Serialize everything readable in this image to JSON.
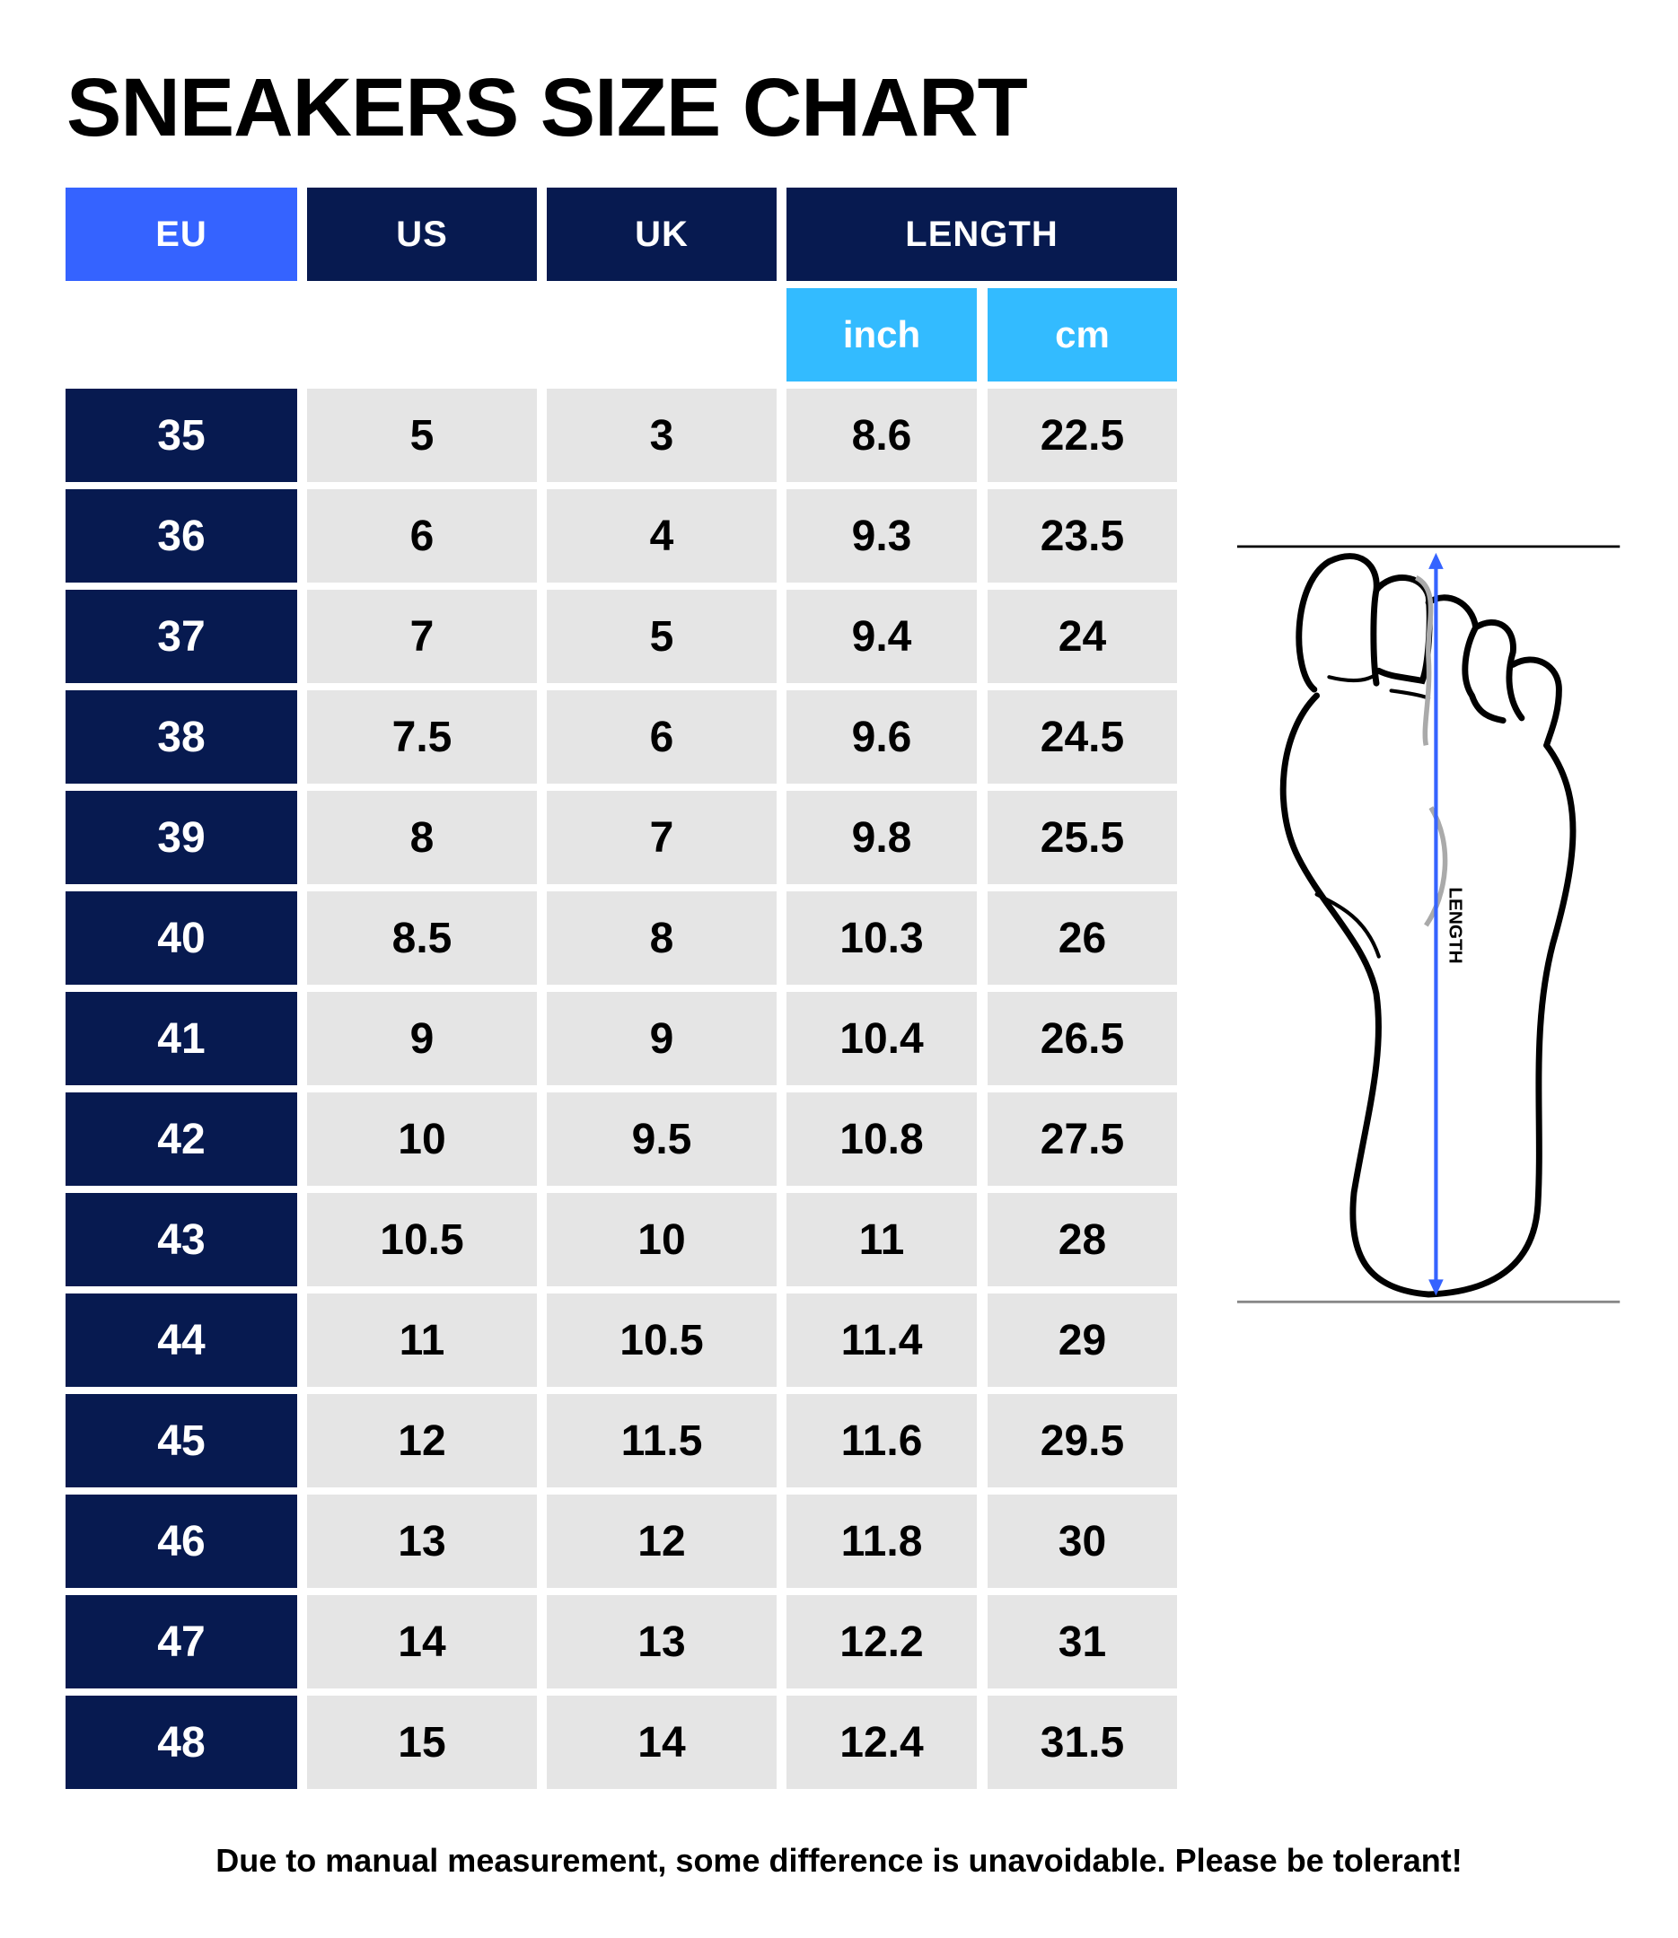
{
  "title": "SNEAKERS SIZE CHART",
  "headers": {
    "eu": "EU",
    "us": "US",
    "uk": "UK",
    "length": "LENGTH",
    "inch": "inch",
    "cm": "cm"
  },
  "rows": [
    {
      "eu": "35",
      "us": "5",
      "uk": "3",
      "inch": "8.6",
      "cm": "22.5"
    },
    {
      "eu": "36",
      "us": "6",
      "uk": "4",
      "inch": "9.3",
      "cm": "23.5"
    },
    {
      "eu": "37",
      "us": "7",
      "uk": "5",
      "inch": "9.4",
      "cm": "24"
    },
    {
      "eu": "38",
      "us": "7.5",
      "uk": "6",
      "inch": "9.6",
      "cm": "24.5"
    },
    {
      "eu": "39",
      "us": "8",
      "uk": "7",
      "inch": "9.8",
      "cm": "25.5"
    },
    {
      "eu": "40",
      "us": "8.5",
      "uk": "8",
      "inch": "10.3",
      "cm": "26"
    },
    {
      "eu": "41",
      "us": "9",
      "uk": "9",
      "inch": "10.4",
      "cm": "26.5"
    },
    {
      "eu": "42",
      "us": "10",
      "uk": "9.5",
      "inch": "10.8",
      "cm": "27.5"
    },
    {
      "eu": "43",
      "us": "10.5",
      "uk": "10",
      "inch": "11",
      "cm": "28"
    },
    {
      "eu": "44",
      "us": "11",
      "uk": "10.5",
      "inch": "11.4",
      "cm": "29"
    },
    {
      "eu": "45",
      "us": "12",
      "uk": "11.5",
      "inch": "11.6",
      "cm": "29.5"
    },
    {
      "eu": "46",
      "us": "13",
      "uk": "12",
      "inch": "11.8",
      "cm": "30"
    },
    {
      "eu": "47",
      "us": "14",
      "uk": "13",
      "inch": "12.2",
      "cm": "31"
    },
    {
      "eu": "48",
      "us": "15",
      "uk": "14",
      "inch": "12.4",
      "cm": "31.5"
    }
  ],
  "diagram": {
    "label": "LENGTH",
    "arrow_color": "#3563ff"
  },
  "footer": "Due to manual measurement, some difference is unavoidable. Please be tolerant!",
  "colors": {
    "navy": "#071a50",
    "blue": "#3563ff",
    "sky": "#33bbff",
    "cell_gray": "#e5e5e5"
  }
}
